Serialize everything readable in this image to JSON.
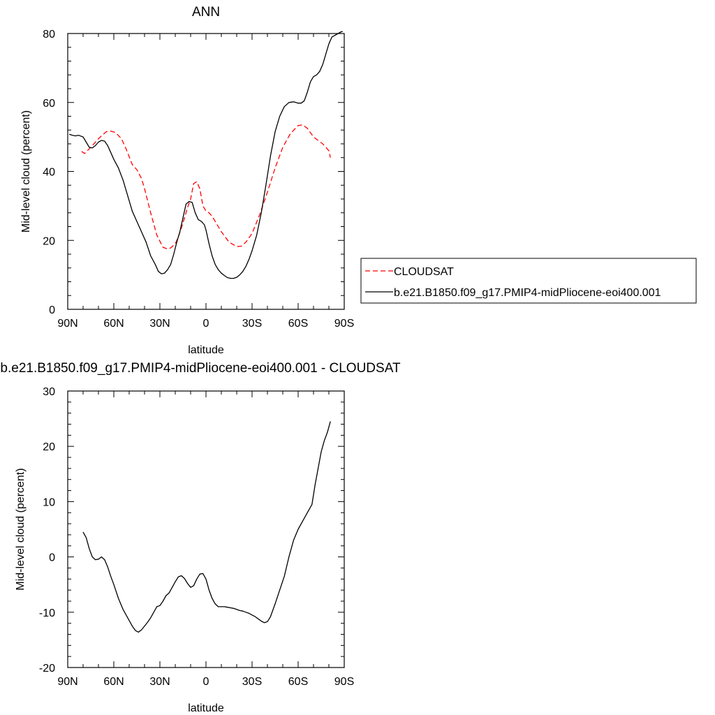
{
  "chart_data": [
    {
      "type": "line",
      "title": "ANN",
      "xlabel": "latitude",
      "ylabel": "Mid-level cloud (percent)",
      "xlim": [
        90,
        -90
      ],
      "ylim": [
        0,
        80
      ],
      "xticks": [
        90,
        60,
        30,
        0,
        -30,
        -60,
        -90
      ],
      "xtick_labels": [
        "90N",
        "60N",
        "30N",
        "0",
        "30S",
        "60S",
        "90S"
      ],
      "yticks": [
        0,
        20,
        40,
        60,
        80
      ],
      "ytick_labels": [
        "0",
        "20",
        "40",
        "60",
        "80"
      ],
      "legend_position": "right",
      "series": [
        {
          "name": "CLOUDSAT",
          "color": "#ff0000",
          "style": "dashed",
          "x": [
            81,
            79,
            75,
            70,
            65,
            62,
            59,
            55,
            52,
            48,
            45,
            42,
            40,
            36,
            32,
            28,
            25,
            23,
            20,
            18,
            15,
            12,
            10,
            8,
            6,
            4,
            2,
            0,
            -2,
            -4,
            -6,
            -10,
            -15,
            -20,
            -23,
            -26,
            -30,
            -35,
            -40,
            -45,
            -50,
            -55,
            -60,
            -63,
            -66,
            -70,
            -73,
            -76,
            -80,
            -81
          ],
          "y": [
            45.8,
            45.2,
            47.0,
            49.5,
            51.5,
            51.7,
            51.3,
            49.5,
            46.5,
            42.0,
            40.5,
            38.0,
            35.0,
            28.0,
            21.5,
            18.0,
            17.5,
            17.8,
            19.0,
            21.0,
            25.0,
            29.5,
            32.0,
            36.5,
            37.0,
            35.0,
            30.0,
            28.5,
            28.0,
            27.0,
            25.5,
            22.5,
            19.5,
            18.2,
            18.3,
            19.5,
            22.0,
            27.5,
            34.0,
            41.0,
            47.0,
            51.0,
            53.3,
            53.5,
            52.5,
            50.0,
            49.0,
            48.0,
            46.0,
            44.0
          ]
        },
        {
          "name": "b.e21.B1850.f09_g17.PMIP4-midPliocene-eoi400.001",
          "color": "#000000",
          "style": "solid",
          "x": [
            89,
            87,
            85,
            83,
            80,
            78,
            76,
            74,
            72,
            70,
            68,
            66,
            64,
            62,
            60,
            57,
            54,
            51,
            48,
            45,
            42,
            39,
            36,
            33,
            31,
            29,
            27,
            25,
            23,
            21,
            19,
            17,
            15,
            13,
            11,
            9,
            7,
            5,
            3,
            1,
            0,
            -2,
            -4,
            -6,
            -8,
            -10,
            -12,
            -14,
            -16,
            -18,
            -20,
            -22,
            -24,
            -26,
            -28,
            -30,
            -33,
            -36,
            -39,
            -42,
            -45,
            -48,
            -51,
            -54,
            -57,
            -60,
            -62,
            -64,
            -66,
            -68,
            -70,
            -72,
            -74,
            -76,
            -78,
            -80,
            -82,
            -84,
            -86,
            -88,
            -89
          ],
          "y": [
            50.8,
            50.5,
            50.3,
            50.5,
            50.0,
            48.5,
            47.0,
            46.8,
            47.5,
            48.5,
            49.0,
            48.8,
            47.5,
            45.5,
            43.5,
            41.0,
            37.5,
            33.0,
            28.5,
            25.5,
            22.5,
            19.5,
            15.5,
            13.0,
            11.0,
            10.3,
            10.5,
            11.5,
            13.0,
            16.0,
            19.5,
            22.5,
            26.5,
            30.5,
            31.3,
            31.0,
            28.0,
            26.0,
            25.5,
            24.5,
            23.0,
            19.0,
            15.5,
            13.0,
            11.5,
            10.5,
            9.8,
            9.2,
            9.0,
            9.0,
            9.3,
            10.0,
            11.0,
            12.5,
            14.5,
            17.0,
            21.5,
            28.0,
            36.0,
            44.5,
            51.5,
            56.0,
            58.8,
            60.0,
            60.2,
            59.8,
            59.8,
            60.5,
            63.0,
            66.0,
            67.5,
            68.0,
            69.0,
            71.0,
            74.0,
            77.0,
            79.0,
            79.5,
            80.0,
            80.5,
            80.6
          ]
        }
      ]
    },
    {
      "type": "line",
      "title": "b.e21.B1850.f09_g17.PMIP4-midPliocene-eoi400.001 - CLOUDSAT",
      "xlabel": "latitude",
      "ylabel": "Mid-level cloud (percent)",
      "xlim": [
        90,
        -90
      ],
      "ylim": [
        -20,
        30
      ],
      "xticks": [
        90,
        60,
        30,
        0,
        -30,
        -60,
        -90
      ],
      "xtick_labels": [
        "90N",
        "60N",
        "30N",
        "0",
        "30S",
        "60S",
        "90S"
      ],
      "yticks": [
        -20,
        -10,
        0,
        10,
        20,
        30
      ],
      "ytick_labels": [
        "-20",
        "-10",
        "0",
        "10",
        "20",
        "30"
      ],
      "series": [
        {
          "color": "#000000",
          "style": "solid",
          "x": [
            80,
            78,
            76,
            74,
            72,
            70,
            68,
            66,
            64,
            62,
            60,
            57,
            54,
            51,
            48,
            46,
            44,
            42,
            40,
            38,
            36,
            34,
            32,
            30,
            28,
            26,
            24,
            22,
            20,
            18,
            16,
            14,
            12,
            10,
            8,
            6,
            4,
            2,
            0,
            -2,
            -4,
            -6,
            -8,
            -10,
            -12,
            -14,
            -16,
            -18,
            -20,
            -22,
            -24,
            -26,
            -28,
            -30,
            -32,
            -34,
            -36,
            -38,
            -40,
            -42,
            -45,
            -48,
            -51,
            -54,
            -57,
            -60,
            -63,
            -66,
            -69,
            -71,
            -73,
            -75,
            -77,
            -79,
            -81
          ],
          "y": [
            4.5,
            3.5,
            1.5,
            0.0,
            -0.5,
            -0.4,
            0.0,
            -0.5,
            -1.8,
            -3.5,
            -5.0,
            -7.5,
            -9.5,
            -11.0,
            -12.5,
            -13.3,
            -13.6,
            -13.2,
            -12.5,
            -11.8,
            -11.0,
            -10.0,
            -9.0,
            -8.8,
            -8.0,
            -7.0,
            -6.5,
            -5.5,
            -4.5,
            -3.6,
            -3.4,
            -3.9,
            -4.8,
            -5.5,
            -5.2,
            -4.0,
            -3.1,
            -3.0,
            -4.0,
            -6.0,
            -7.5,
            -8.5,
            -9.0,
            -9.0,
            -9.0,
            -9.1,
            -9.2,
            -9.3,
            -9.5,
            -9.7,
            -9.8,
            -10.0,
            -10.2,
            -10.5,
            -10.8,
            -11.2,
            -11.6,
            -11.9,
            -11.7,
            -10.8,
            -8.5,
            -6.0,
            -3.5,
            0.0,
            3.0,
            5.0,
            6.5,
            8.0,
            9.5,
            13.0,
            16.0,
            19.0,
            21.0,
            22.5,
            24.5
          ]
        }
      ]
    }
  ]
}
